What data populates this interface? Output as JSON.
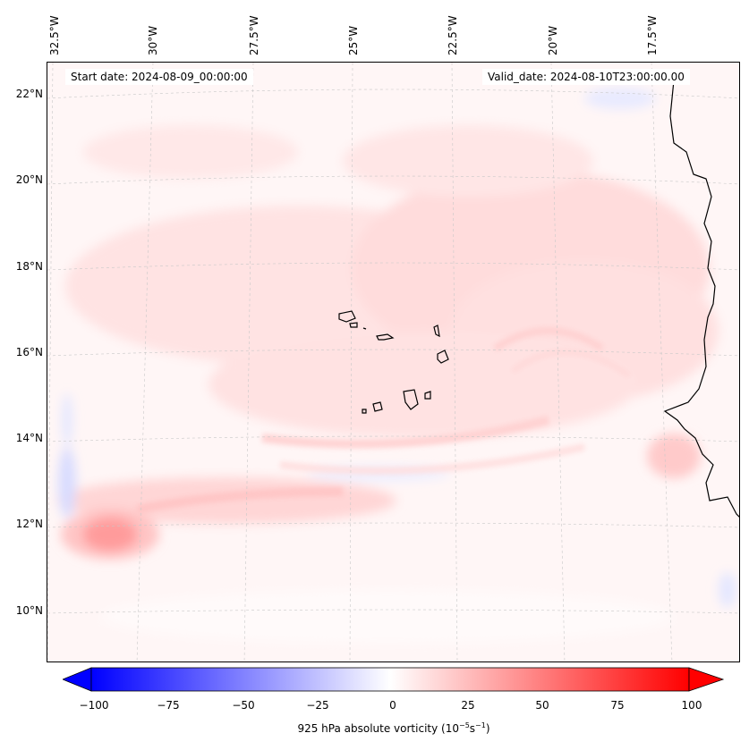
{
  "map": {
    "start_label": "Start date: 2024-08-09_00:00:00",
    "valid_label": "Valid_date: 2024-08-10T23:00:00.00",
    "lon_labels": [
      "32.5°W",
      "30°W",
      "27.5°W",
      "25°W",
      "22.5°W",
      "20°W",
      "17.5°W"
    ],
    "lat_labels": [
      "22°N",
      "20°N",
      "18°N",
      "16°N",
      "14°N",
      "12°N",
      "10°N"
    ],
    "variable": "925 hPa absolute vorticity",
    "units_base": "10",
    "units_exp1": "−5",
    "units_mid": "s",
    "units_exp2": "−1",
    "colorbar": {
      "min": -100,
      "max": 100,
      "ticks": [
        "−100",
        "−75",
        "−50",
        "−25",
        "0",
        "25",
        "50",
        "75",
        "100"
      ],
      "low_color": "#0000ff",
      "mid_color": "#ffffff",
      "high_color": "#ff0000"
    }
  }
}
